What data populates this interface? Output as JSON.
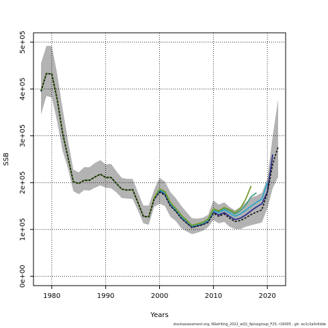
{
  "chart_data": {
    "type": "line",
    "title": "",
    "xlabel": "Years",
    "ylabel": "SSB",
    "xlim": [
      1976.6,
      2023.4
    ],
    "ylim": [
      -20000,
      520000
    ],
    "x_ticks": [
      1980,
      1990,
      2000,
      2010,
      2020
    ],
    "x_tick_labels": [
      "1980",
      "1990",
      "2000",
      "2010",
      "2020"
    ],
    "y_ticks": [
      0,
      100000,
      200000,
      300000,
      400000,
      500000
    ],
    "y_tick_labels": [
      "0e+00",
      "1e+05",
      "2e+05",
      "3e+05",
      "4e+05",
      "5e+05"
    ],
    "grid": true,
    "band": {
      "color": "#b3b3b3",
      "x": [
        1978,
        1979,
        1980,
        1981,
        1982,
        1983,
        1984,
        1985,
        1986,
        1987,
        1988,
        1989,
        1990,
        1991,
        1992,
        1993,
        1994,
        1995,
        1996,
        1997,
        1998,
        1999,
        2000,
        2001,
        2002,
        2003,
        2004,
        2005,
        2006,
        2007,
        2008,
        2009,
        2010,
        2011,
        2012,
        2013,
        2014,
        2015,
        2016,
        2017,
        2018,
        2019,
        2020,
        2021,
        2022
      ],
      "lower": [
        345000,
        385000,
        382000,
        330000,
        268000,
        230000,
        182000,
        175000,
        184000,
        183000,
        189000,
        194000,
        189000,
        188000,
        179000,
        167000,
        166000,
        165000,
        140000,
        113000,
        110000,
        148000,
        155000,
        150000,
        127000,
        118000,
        103000,
        96000,
        90000,
        93000,
        97000,
        105000,
        120000,
        113000,
        116000,
        106000,
        101000,
        101000,
        106000,
        109000,
        112000,
        115000,
        145000,
        188000,
        212000
      ],
      "upper": [
        455000,
        492000,
        492000,
        432000,
        358000,
        290000,
        228000,
        222000,
        233000,
        233000,
        242000,
        248000,
        239000,
        240000,
        224000,
        210000,
        208000,
        208000,
        179000,
        151000,
        151000,
        185000,
        210000,
        202000,
        180000,
        167000,
        151000,
        137000,
        124000,
        123000,
        125000,
        131000,
        162000,
        153000,
        158000,
        148000,
        141000,
        148000,
        158000,
        168000,
        172000,
        178000,
        208000,
        300000,
        378000
      ]
    },
    "series": [
      {
        "color": "#1a1a1a",
        "dash": true,
        "x": [
          1978,
          1979,
          1980,
          1981,
          1982,
          1983,
          1984,
          1985,
          1986,
          1987,
          1988,
          1989,
          1990,
          1991,
          1992,
          1993,
          1994,
          1995,
          1996,
          1997,
          1998,
          1999,
          2000,
          2001,
          2002,
          2003,
          2004,
          2005,
          2006,
          2007,
          2008,
          2009,
          2010,
          2011,
          2012,
          2013,
          2014,
          2015,
          2016,
          2017,
          2018,
          2019,
          2020,
          2021,
          2022
        ],
        "values": [
          395000,
          433000,
          432000,
          378000,
          306000,
          254000,
          202000,
          198000,
          205000,
          205000,
          212000,
          218000,
          211000,
          211000,
          198000,
          186000,
          184000,
          185000,
          157000,
          128000,
          127000,
          164000,
          180000,
          173000,
          150000,
          139000,
          124000,
          114000,
          104000,
          107000,
          110000,
          115000,
          135000,
          128000,
          133000,
          124000,
          117000,
          119000,
          125000,
          132000,
          137000,
          142000,
          178000,
          240000,
          276000
        ]
      },
      {
        "color": "#2b2f8c",
        "dash": false,
        "x": [
          1978,
          1979,
          1980,
          1981,
          1982,
          1983,
          1984,
          1985,
          1986,
          1987,
          1988,
          1989,
          1990,
          1991,
          1992,
          1993,
          1994,
          1995,
          1996,
          1997,
          1998,
          1999,
          2000,
          2001,
          2002,
          2003,
          2004,
          2005,
          2006,
          2007,
          2008,
          2009,
          2010,
          2011,
          2012,
          2013,
          2014,
          2015,
          2016,
          2017,
          2018,
          2019,
          2020,
          2021
        ],
        "values": [
          395000,
          433000,
          432000,
          378000,
          306000,
          254000,
          202000,
          198000,
          205000,
          205000,
          212000,
          218000,
          211000,
          211000,
          198000,
          186000,
          184000,
          185000,
          157000,
          128000,
          127000,
          165000,
          182000,
          175000,
          152000,
          140000,
          126000,
          115000,
          105000,
          108000,
          111000,
          117000,
          137000,
          131000,
          136000,
          128000,
          121000,
          124000,
          131000,
          140000,
          148000,
          155000,
          180000,
          260000
        ]
      },
      {
        "color": "#2ba6cb",
        "dash": false,
        "x": [
          1978,
          1979,
          1980,
          1981,
          1982,
          1983,
          1984,
          1985,
          1986,
          1987,
          1988,
          1989,
          1990,
          1991,
          1992,
          1993,
          1994,
          1995,
          1996,
          1997,
          1998,
          1999,
          2000,
          2001,
          2002,
          2003,
          2004,
          2005,
          2006,
          2007,
          2008,
          2009,
          2010,
          2011,
          2012,
          2013,
          2014,
          2015,
          2016,
          2017,
          2018,
          2019,
          2020
        ],
        "values": [
          395000,
          433000,
          432000,
          378000,
          306000,
          254000,
          202000,
          198000,
          205000,
          205000,
          212000,
          218000,
          211000,
          211000,
          198000,
          186000,
          184000,
          185000,
          157000,
          128000,
          127000,
          166000,
          184000,
          178000,
          155000,
          142000,
          128000,
          117000,
          107000,
          110000,
          113000,
          119000,
          140000,
          136000,
          142000,
          135000,
          128000,
          133000,
          141000,
          150000,
          158000,
          165000,
          200000
        ]
      },
      {
        "color": "#46a088",
        "dash": false,
        "x": [
          1978,
          1979,
          1980,
          1981,
          1982,
          1983,
          1984,
          1985,
          1986,
          1987,
          1988,
          1989,
          1990,
          1991,
          1992,
          1993,
          1994,
          1995,
          1996,
          1997,
          1998,
          1999,
          2000,
          2001,
          2002,
          2003,
          2004,
          2005,
          2006,
          2007,
          2008,
          2009,
          2010,
          2011,
          2012,
          2013,
          2014,
          2015,
          2016,
          2017,
          2018
        ],
        "values": [
          395000,
          433000,
          432000,
          378000,
          306000,
          254000,
          202000,
          198000,
          205000,
          205000,
          212000,
          218000,
          211000,
          211000,
          198000,
          186000,
          184000,
          185000,
          157000,
          128000,
          127000,
          167000,
          186000,
          180000,
          157000,
          144000,
          130000,
          119000,
          108000,
          111000,
          114000,
          121000,
          142000,
          138000,
          145000,
          140000,
          133000,
          140000,
          152000,
          170000,
          178000
        ]
      },
      {
        "color": "#7a9b2c",
        "dash": false,
        "x": [
          1978,
          1979,
          1980,
          1981,
          1982,
          1983,
          1984,
          1985,
          1986,
          1987,
          1988,
          1989,
          1990,
          1991,
          1992,
          1993,
          1994,
          1995,
          1996,
          1997,
          1998,
          1999,
          2000,
          2001,
          2002,
          2003,
          2004,
          2005,
          2006,
          2007,
          2008,
          2009,
          2010,
          2011,
          2012,
          2013,
          2014,
          2015,
          2016,
          2017
        ],
        "values": [
          395000,
          433000,
          432000,
          378000,
          306000,
          254000,
          202000,
          198000,
          205000,
          205000,
          212000,
          218000,
          211000,
          211000,
          198000,
          186000,
          184000,
          185000,
          157000,
          128000,
          127000,
          168000,
          187000,
          181000,
          158000,
          145000,
          131000,
          120000,
          109000,
          112000,
          115000,
          122000,
          144000,
          140000,
          147000,
          142000,
          136000,
          145000,
          165000,
          193000
        ]
      }
    ]
  },
  "footer_text": "stockassessment.org, NSehlting_2022_wQ1_6plusgroup_F25, r16005 , git: ec2c2a0c6dde"
}
